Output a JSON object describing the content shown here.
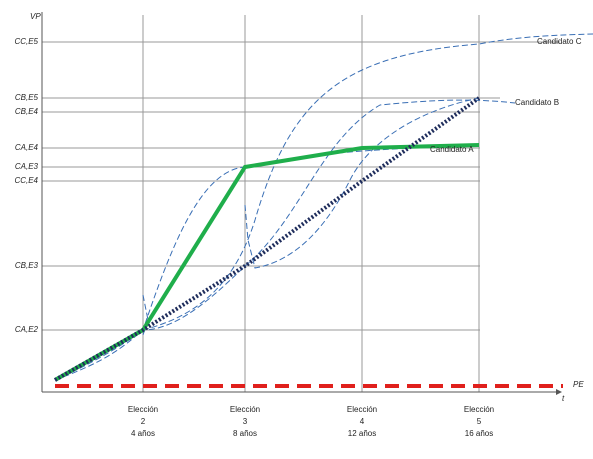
{
  "axes": {
    "y_label": "VP",
    "x_label": "t",
    "baseline_label": "PE"
  },
  "y_ticks": [
    "CC,E5",
    "CB,E5",
    "CB,E4",
    "CA,E4",
    "CA,E3",
    "CC,E4",
    "CB,E3",
    "CA,E2"
  ],
  "x_ticks": [
    {
      "line1": "Elección",
      "line2": "2",
      "line3": "4 años"
    },
    {
      "line1": "Elección",
      "line2": "3",
      "line3": "8 años"
    },
    {
      "line1": "Elección",
      "line2": "4",
      "line3": "12 años"
    },
    {
      "line1": "Elección",
      "line2": "5",
      "line3": "16 años"
    }
  ],
  "curve_labels": [
    "Candidato C",
    "Candidato B",
    "Candidato A"
  ]
}
